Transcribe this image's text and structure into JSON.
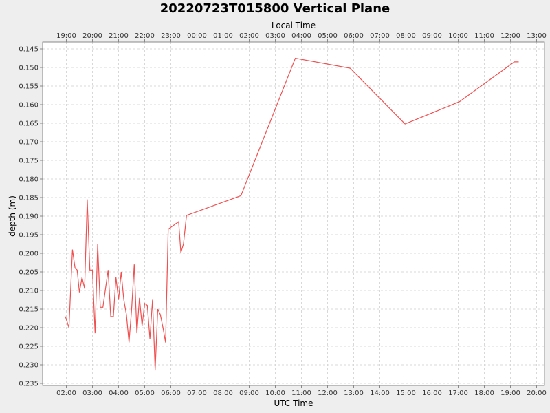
{
  "chart_data": {
    "type": "line",
    "title": "20220723T015800 Vertical Plane",
    "xlabel": "UTC Time",
    "x2label": "Local Time",
    "ylabel": "depth (m)",
    "y_axis_inverted": true,
    "ylim": [
      0.145,
      0.235
    ],
    "y_ticks": [
      "0.145",
      "0.150",
      "0.155",
      "0.160",
      "0.165",
      "0.170",
      "0.175",
      "0.180",
      "0.185",
      "0.190",
      "0.195",
      "0.200",
      "0.205",
      "0.210",
      "0.215",
      "0.220",
      "0.225",
      "0.230",
      "0.235"
    ],
    "x_ticks_utc": [
      "02:00",
      "03:00",
      "04:00",
      "05:00",
      "06:00",
      "07:00",
      "08:00",
      "09:00",
      "10:00",
      "11:00",
      "12:00",
      "13:00",
      "14:00",
      "15:00",
      "16:00",
      "17:00",
      "18:00",
      "19:00",
      "20:00"
    ],
    "x_ticks_local": [
      "19:00",
      "20:00",
      "21:00",
      "22:00",
      "23:00",
      "00:00",
      "01:00",
      "02:00",
      "03:00",
      "04:00",
      "05:00",
      "06:00",
      "07:00",
      "08:00",
      "09:00",
      "10:00",
      "11:00",
      "12:00",
      "13:00"
    ],
    "grid": true,
    "line_color": "#f05050",
    "series": [
      {
        "x": [
          "01:58",
          "02:06",
          "02:14",
          "02:20",
          "02:25",
          "02:30",
          "02:36",
          "02:42",
          "02:48",
          "02:54",
          "03:00",
          "03:06",
          "03:12",
          "03:18",
          "03:24",
          "03:30",
          "03:36",
          "03:42",
          "03:48",
          "03:54",
          "03:60",
          "04:06",
          "04:12",
          "04:18",
          "04:24",
          "04:30",
          "04:36",
          "04:42",
          "04:48",
          "04:54",
          "05:00",
          "05:06",
          "05:12",
          "05:18",
          "05:24",
          "05:30",
          "05:36",
          "05:42",
          "05:48",
          "05:54",
          "06:18",
          "06:23",
          "06:29",
          "06:36",
          "08:41",
          "10:46",
          "12:52",
          "14:58",
          "17:03",
          "19:09",
          "19:19"
        ],
        "y": [
          0.217,
          0.22,
          0.199,
          0.204,
          0.2045,
          0.2105,
          0.2065,
          0.2095,
          0.1855,
          0.2045,
          0.2045,
          0.2215,
          0.1975,
          0.2145,
          0.2145,
          0.2095,
          0.2045,
          0.217,
          0.217,
          0.2065,
          0.2125,
          0.205,
          0.2125,
          0.2165,
          0.224,
          0.215,
          0.203,
          0.2215,
          0.212,
          0.2195,
          0.2135,
          0.214,
          0.223,
          0.2125,
          0.2315,
          0.215,
          0.2165,
          0.22,
          0.224,
          0.1935,
          0.1915,
          0.1998,
          0.1975,
          0.1898,
          0.1845,
          0.1475,
          0.1502,
          0.1652,
          0.1592,
          0.1485,
          0.1485
        ]
      }
    ]
  }
}
